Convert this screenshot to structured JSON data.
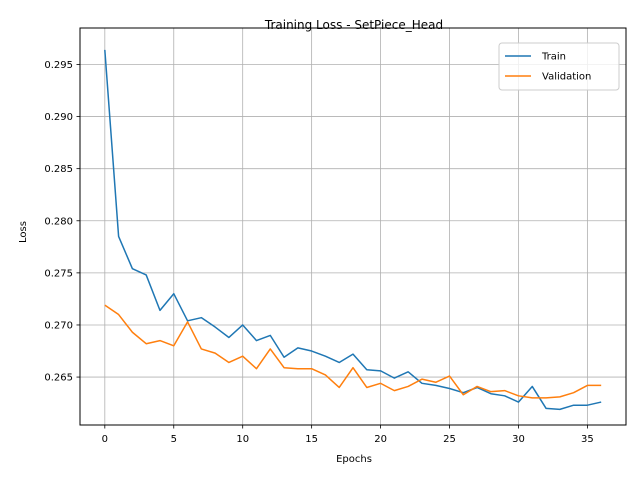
{
  "chart_data": {
    "type": "line",
    "title": "Training Loss - SetPiece_Head",
    "xlabel": "Epochs",
    "ylabel": "Loss",
    "xlim": [
      -1.8,
      37.8
    ],
    "ylim": [
      0.2604,
      0.2985
    ],
    "xticks": [
      0,
      5,
      10,
      15,
      20,
      25,
      30,
      35
    ],
    "yticks": [
      0.265,
      0.27,
      0.275,
      0.28,
      0.285,
      0.29,
      0.295
    ],
    "grid": true,
    "legend_position": "top-right",
    "x": [
      0,
      1,
      2,
      3,
      4,
      5,
      6,
      7,
      8,
      9,
      10,
      11,
      12,
      13,
      14,
      15,
      16,
      17,
      18,
      19,
      20,
      21,
      22,
      23,
      24,
      25,
      26,
      27,
      28,
      29,
      30,
      31,
      32,
      33,
      34,
      35,
      36
    ],
    "series": [
      {
        "name": "Train",
        "color": "#1f77b4",
        "values": [
          0.2964,
          0.2785,
          0.2754,
          0.2748,
          0.2714,
          0.273,
          0.2704,
          0.2707,
          0.2698,
          0.2688,
          0.27,
          0.2685,
          0.269,
          0.2669,
          0.2678,
          0.2675,
          0.267,
          0.2664,
          0.2672,
          0.2657,
          0.2656,
          0.2649,
          0.2655,
          0.2644,
          0.2642,
          0.2639,
          0.2635,
          0.264,
          0.2634,
          0.2632,
          0.2626,
          0.2641,
          0.262,
          0.2619,
          0.2623,
          0.2623,
          0.2626
        ]
      },
      {
        "name": "Validation",
        "color": "#ff7f0e",
        "values": [
          0.2719,
          0.271,
          0.2693,
          0.2682,
          0.2685,
          0.268,
          0.2703,
          0.2677,
          0.2673,
          0.2664,
          0.267,
          0.2658,
          0.2677,
          0.2659,
          0.2658,
          0.2658,
          0.2652,
          0.264,
          0.2659,
          0.264,
          0.2644,
          0.2637,
          0.2641,
          0.2648,
          0.2645,
          0.2651,
          0.2633,
          0.2641,
          0.2636,
          0.2637,
          0.2632,
          0.263,
          0.263,
          0.2631,
          0.2635,
          0.2642,
          0.2642
        ]
      }
    ]
  }
}
